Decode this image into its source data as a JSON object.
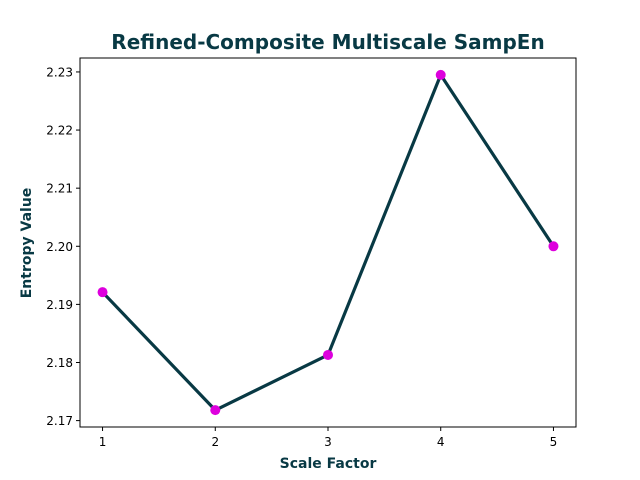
{
  "chart_data": {
    "type": "line",
    "title": "Refined-Composite Multiscale SampEn",
    "xlabel": "Scale Factor",
    "ylabel": "Entropy Value",
    "x": [
      1,
      2,
      3,
      4,
      5
    ],
    "series": [
      {
        "values": [
          2.1921,
          2.1718,
          2.1813,
          2.2295,
          2.2
        ]
      }
    ],
    "xticks": [
      "1",
      "2",
      "3",
      "4",
      "5"
    ],
    "yticks": [
      "2.17",
      "2.18",
      "2.19",
      "2.20",
      "2.21",
      "2.22",
      "2.23"
    ],
    "ytick_values": [
      2.17,
      2.18,
      2.19,
      2.2,
      2.21,
      2.22,
      2.23
    ],
    "xlim": [
      0.8,
      5.2
    ],
    "ylim": [
      2.1689,
      2.2324
    ],
    "grid": false,
    "colors": {
      "line": "#083944",
      "marker": "#dd00dd",
      "text": "#083944"
    }
  }
}
